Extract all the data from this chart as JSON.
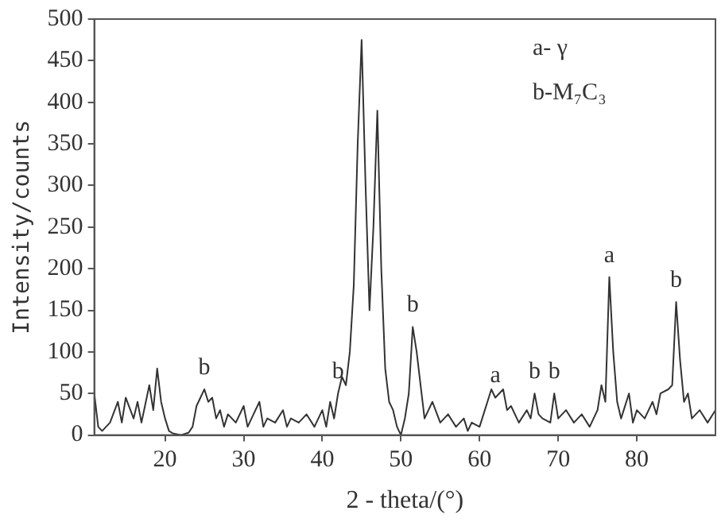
{
  "chart_data": {
    "type": "line",
    "xlabel": "2 - theta/(°)",
    "ylabel": "Intensity/counts",
    "x": [
      11,
      11.5,
      12,
      13,
      14,
      14.5,
      15,
      16,
      16.5,
      17,
      18,
      18.5,
      19,
      19.5,
      20,
      20.5,
      21,
      22,
      23,
      23.5,
      24,
      24.5,
      25,
      25.5,
      26,
      26.5,
      27,
      27.5,
      28,
      29,
      30,
      30.5,
      31,
      32,
      32.5,
      33,
      34,
      35,
      35.5,
      36,
      37,
      38,
      39,
      40,
      40.5,
      41,
      41.5,
      42,
      42.5,
      43,
      43.5,
      44,
      44.5,
      45,
      45.5,
      46,
      46.5,
      47,
      47.5,
      48,
      48.5,
      49,
      49.5,
      50,
      50.5,
      51,
      51.5,
      52,
      52.5,
      53,
      54,
      55,
      56,
      57,
      58,
      58.5,
      59,
      60,
      61,
      61.5,
      62,
      63,
      63.5,
      64,
      65,
      66,
      66.5,
      67,
      67.5,
      68,
      69,
      69.5,
      70,
      71,
      72,
      73,
      74,
      75,
      75.5,
      76,
      76.5,
      77,
      77.5,
      78,
      79,
      79.5,
      80,
      81,
      82,
      82.5,
      83,
      84,
      84.5,
      85,
      85.5,
      86,
      86.5,
      87,
      88,
      89,
      90
    ],
    "series": [
      {
        "color": "#333333",
        "values": [
          50,
          10,
          5,
          15,
          40,
          15,
          45,
          20,
          40,
          15,
          60,
          30,
          80,
          40,
          20,
          5,
          2,
          0,
          3,
          10,
          35,
          45,
          55,
          40,
          45,
          20,
          30,
          10,
          25,
          15,
          35,
          10,
          20,
          40,
          10,
          20,
          15,
          30,
          10,
          20,
          15,
          25,
          10,
          30,
          10,
          40,
          20,
          50,
          70,
          60,
          100,
          180,
          350,
          475,
          300,
          150,
          250,
          390,
          200,
          80,
          40,
          30,
          10,
          0,
          20,
          50,
          130,
          100,
          60,
          20,
          40,
          15,
          25,
          10,
          20,
          5,
          15,
          10,
          40,
          55,
          45,
          55,
          30,
          35,
          15,
          30,
          20,
          50,
          25,
          20,
          15,
          50,
          20,
          30,
          15,
          25,
          10,
          30,
          60,
          40,
          190,
          100,
          40,
          20,
          50,
          15,
          30,
          20,
          40,
          25,
          50,
          55,
          60,
          160,
          90,
          40,
          50,
          20,
          30,
          15,
          30
        ]
      }
    ],
    "xlim": [
      11,
      90
    ],
    "xticks": [
      20,
      30,
      40,
      50,
      60,
      70,
      80
    ],
    "ylim": [
      0,
      500
    ],
    "yticks": [
      0,
      50,
      100,
      150,
      200,
      250,
      300,
      350,
      400,
      450,
      500
    ],
    "grid": false,
    "legend": false,
    "marker": "none",
    "line_style": "solid",
    "annotations": [
      "a- γ",
      "b-M₇C₃",
      {
        "text": "b",
        "x": 25,
        "y": 55
      },
      {
        "text": "b",
        "x": 42,
        "y": 50
      },
      {
        "text": "b",
        "x": 51.5,
        "y": 130
      },
      {
        "text": "a",
        "x": 62,
        "y": 45
      },
      {
        "text": "b",
        "x": 67,
        "y": 50
      },
      {
        "text": "b",
        "x": 69.5,
        "y": 50
      },
      {
        "text": "a",
        "x": 76.5,
        "y": 190
      },
      {
        "text": "b",
        "x": 85,
        "y": 160
      }
    ]
  }
}
